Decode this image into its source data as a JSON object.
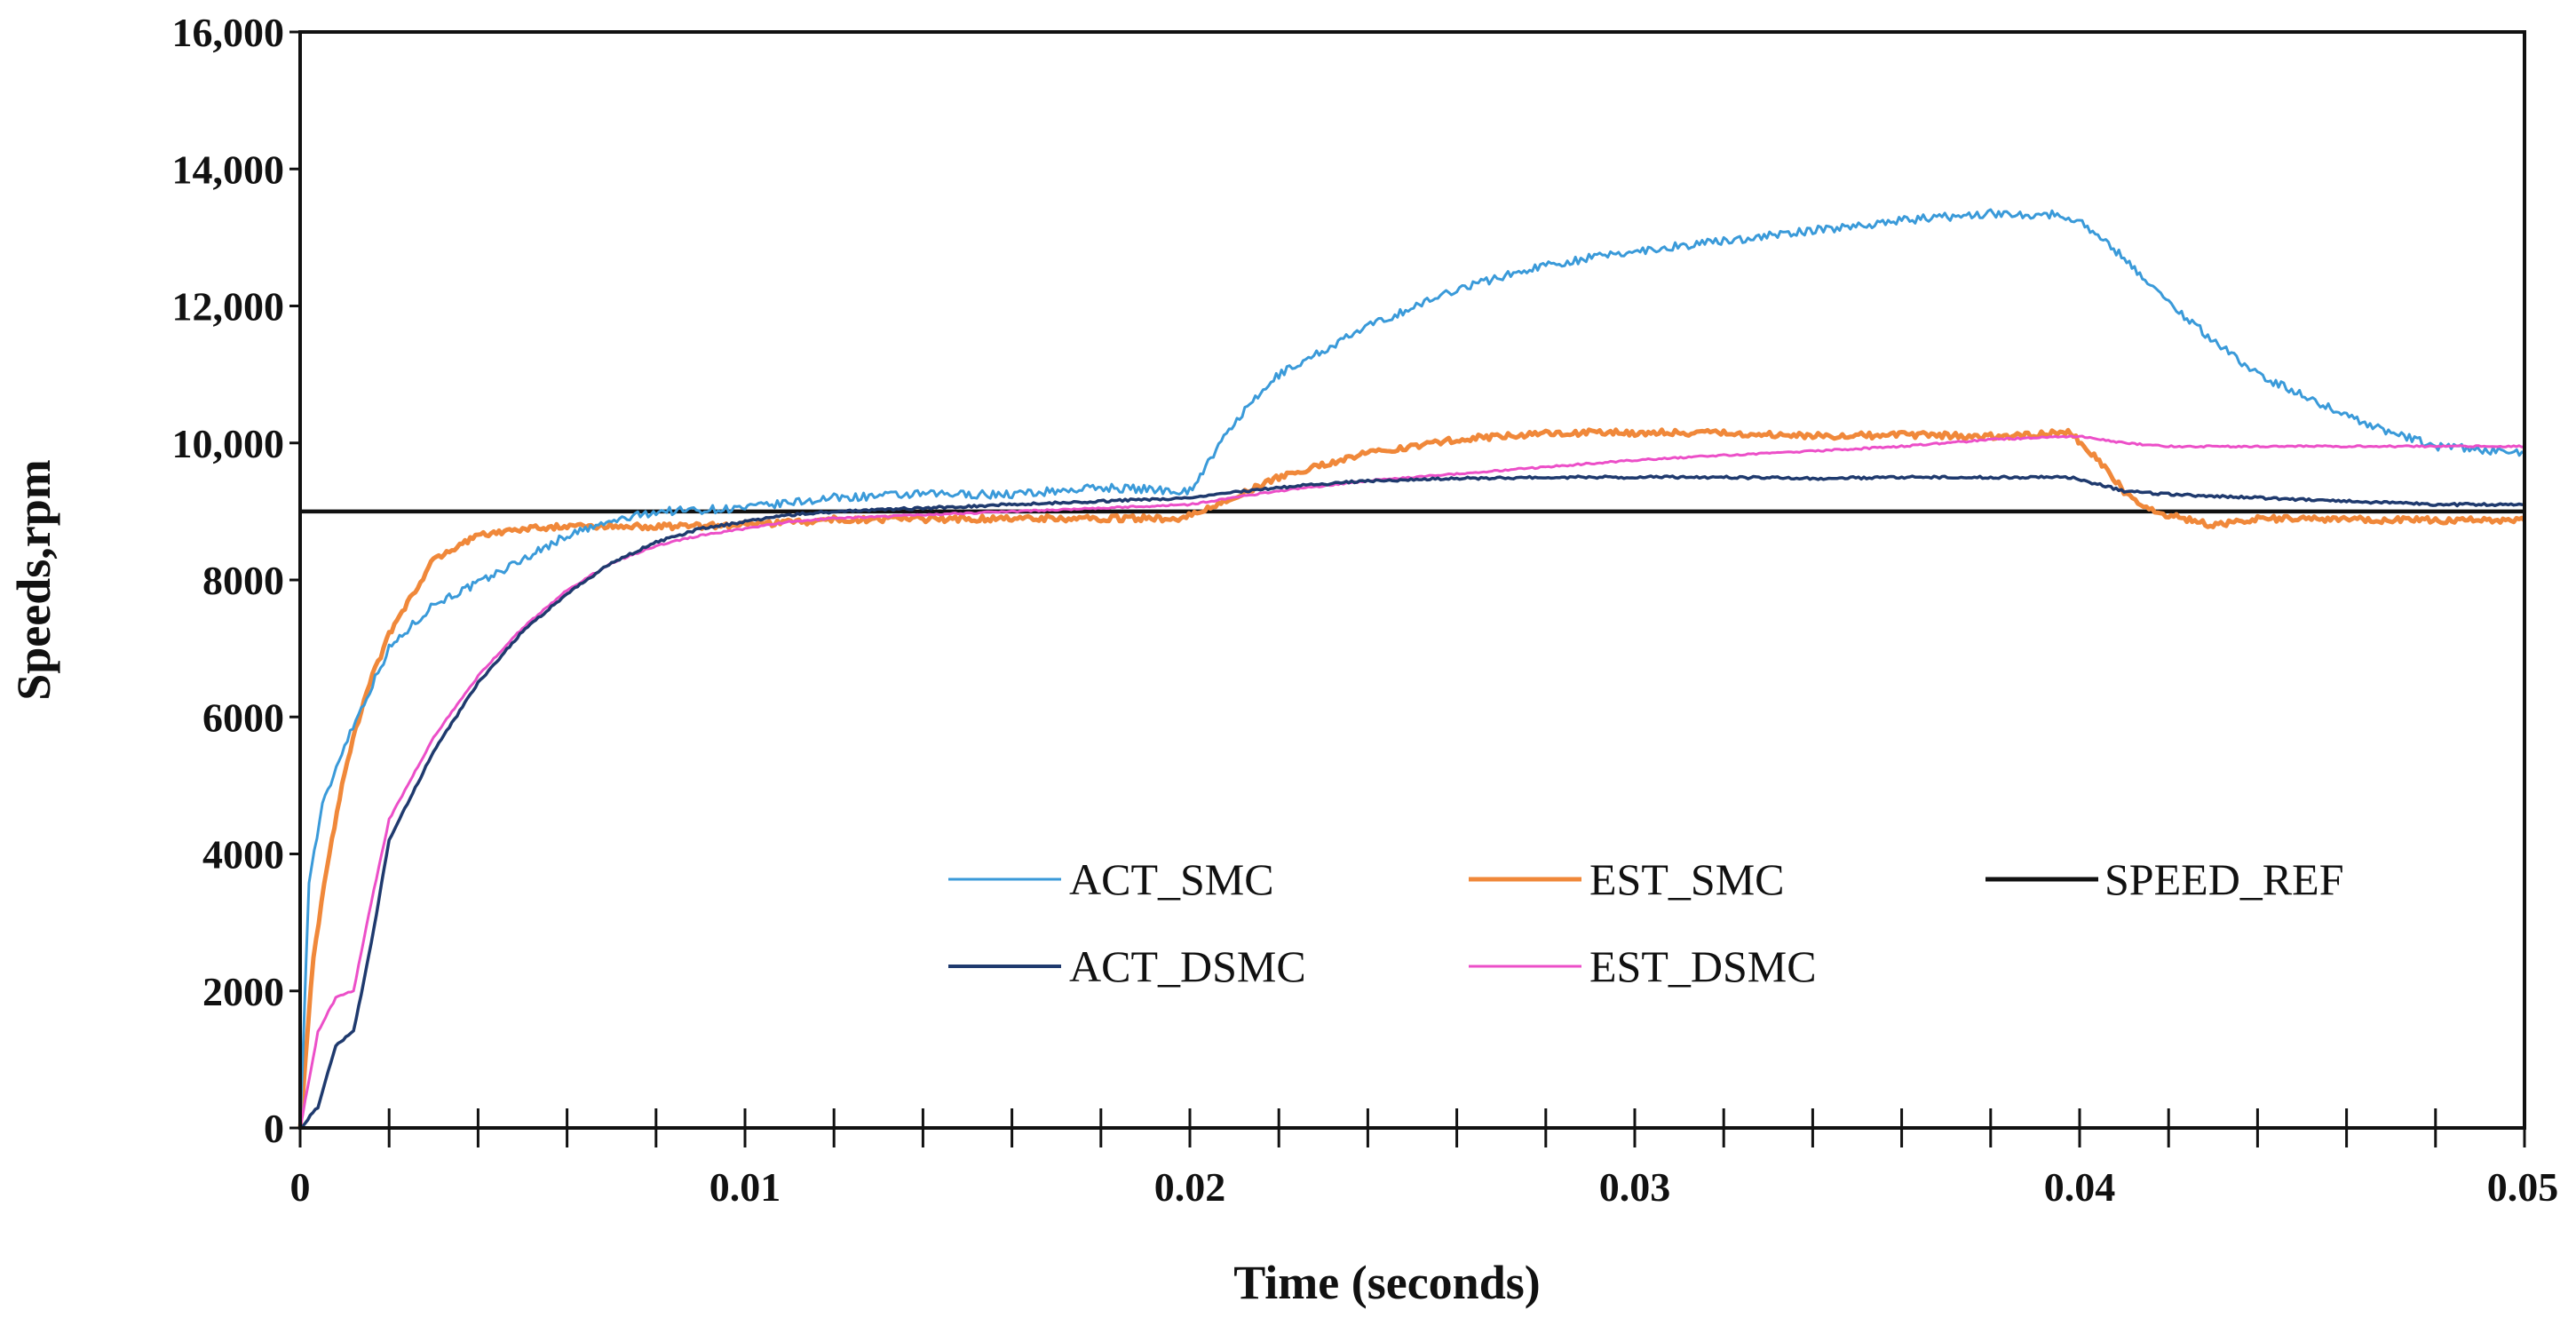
{
  "chart_data": {
    "type": "line",
    "title": "",
    "xlabel": "Time (seconds)",
    "ylabel": "Speeds,rpm",
    "xlim": [
      0,
      0.05
    ],
    "ylim": [
      0,
      16000
    ],
    "x_ticks": [
      0,
      0.01,
      0.02,
      0.03,
      0.04,
      0.05
    ],
    "x_tick_labels": [
      "0",
      "0.01",
      "0.02",
      "0.03",
      "0.04",
      "0.05"
    ],
    "y_ticks": [
      0,
      2000,
      4000,
      6000,
      8000,
      10000,
      12000,
      14000,
      16000
    ],
    "y_tick_labels": [
      "0",
      "2000",
      "4000",
      "6000",
      "8000",
      "10,000",
      "12,000",
      "14,000",
      "16,000"
    ],
    "x_minor_step": 0.002,
    "legend_position": "lower-center",
    "series": [
      {
        "name": "ACT_SMC",
        "color": "#3a9ad9",
        "x": [
          0,
          0.0002,
          0.0005,
          0.001,
          0.0015,
          0.002,
          0.003,
          0.004,
          0.005,
          0.006,
          0.007,
          0.008,
          0.01,
          0.012,
          0.014,
          0.016,
          0.018,
          0.02,
          0.021,
          0.022,
          0.024,
          0.026,
          0.028,
          0.03,
          0.032,
          0.034,
          0.036,
          0.038,
          0.0395,
          0.04,
          0.041,
          0.042,
          0.043,
          0.044,
          0.045,
          0.046,
          0.047,
          0.048,
          0.049,
          0.05
        ],
        "y": [
          0,
          3600,
          4700,
          5600,
          6300,
          7000,
          7650,
          7950,
          8300,
          8650,
          8850,
          9000,
          9050,
          9200,
          9250,
          9250,
          9350,
          9300,
          10300,
          11000,
          11700,
          12250,
          12600,
          12800,
          12950,
          13100,
          13250,
          13350,
          13330,
          13250,
          12700,
          12050,
          11500,
          11000,
          10700,
          10400,
          10150,
          9950,
          9900,
          9850
        ]
      },
      {
        "name": "EST_SMC",
        "color": "#f0883a",
        "x": [
          0,
          0.0003,
          0.0006,
          0.001,
          0.0015,
          0.002,
          0.003,
          0.004,
          0.005,
          0.006,
          0.008,
          0.01,
          0.012,
          0.014,
          0.016,
          0.018,
          0.0198,
          0.021,
          0.022,
          0.024,
          0.026,
          0.028,
          0.03,
          0.032,
          0.034,
          0.036,
          0.038,
          0.0398,
          0.0405,
          0.041,
          0.0415,
          0.042,
          0.043,
          0.044,
          0.046,
          0.048,
          0.05
        ],
        "y": [
          0,
          2500,
          3800,
          5200,
          6400,
          7200,
          8300,
          8650,
          8750,
          8780,
          8780,
          8800,
          8880,
          8890,
          8900,
          8900,
          8900,
          9200,
          9500,
          9850,
          10050,
          10150,
          10150,
          10150,
          10100,
          10120,
          10100,
          10150,
          9700,
          9300,
          9050,
          8950,
          8800,
          8900,
          8880,
          8870,
          8870
        ]
      },
      {
        "name": "SPEED_REF",
        "color": "#111111",
        "x": [
          0,
          0.05
        ],
        "y": [
          9000,
          9000
        ]
      },
      {
        "name": "ACT_DSMC",
        "color": "#1f3a6e",
        "x": [
          0,
          0.0004,
          0.0008,
          0.0012,
          0.0016,
          0.002,
          0.003,
          0.004,
          0.005,
          0.006,
          0.007,
          0.008,
          0.009,
          0.01,
          0.011,
          0.012,
          0.014,
          0.016,
          0.018,
          0.02,
          0.022,
          0.024,
          0.026,
          0.028,
          0.03,
          0.032,
          0.034,
          0.036,
          0.038,
          0.0398,
          0.041,
          0.042,
          0.044,
          0.046,
          0.048,
          0.05
        ],
        "y": [
          0,
          300,
          1200,
          1400,
          2700,
          4200,
          5500,
          6500,
          7250,
          7800,
          8250,
          8550,
          8750,
          8850,
          8950,
          9000,
          9050,
          9100,
          9150,
          9200,
          9350,
          9450,
          9480,
          9500,
          9500,
          9500,
          9480,
          9500,
          9500,
          9500,
          9300,
          9250,
          9200,
          9150,
          9100,
          9100
        ]
      },
      {
        "name": "EST_DSMC",
        "color": "#ec4fc8",
        "x": [
          0,
          0.0004,
          0.0008,
          0.0012,
          0.0016,
          0.002,
          0.003,
          0.004,
          0.005,
          0.006,
          0.007,
          0.008,
          0.009,
          0.01,
          0.011,
          0.012,
          0.014,
          0.016,
          0.018,
          0.02,
          0.022,
          0.024,
          0.026,
          0.028,
          0.03,
          0.032,
          0.034,
          0.036,
          0.038,
          0.04,
          0.041,
          0.042,
          0.044,
          0.046,
          0.048,
          0.05
        ],
        "y": [
          0,
          1400,
          1900,
          2000,
          3300,
          4500,
          5700,
          6600,
          7300,
          7850,
          8250,
          8500,
          8650,
          8750,
          8850,
          8900,
          8950,
          9000,
          9050,
          9100,
          9300,
          9450,
          9550,
          9650,
          9750,
          9820,
          9880,
          9950,
          10050,
          10100,
          10000,
          9950,
          9950,
          9950,
          9950,
          9950
        ]
      }
    ],
    "legend": [
      {
        "label": "ACT_SMC",
        "series": 0
      },
      {
        "label": "EST_SMC",
        "series": 1
      },
      {
        "label": "SPEED_REF",
        "series": 2
      },
      {
        "label": "ACT_DSMC",
        "series": 3
      },
      {
        "label": "EST_DSMC",
        "series": 4
      }
    ]
  }
}
